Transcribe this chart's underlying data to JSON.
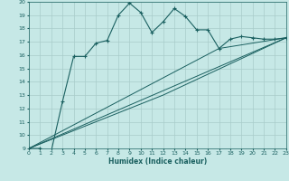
{
  "xlabel": "Humidex (Indice chaleur)",
  "ylabel": "",
  "xlim": [
    0,
    23
  ],
  "ylim": [
    9,
    20
  ],
  "yticks": [
    9,
    10,
    11,
    12,
    13,
    14,
    15,
    16,
    17,
    18,
    19,
    20
  ],
  "xticks": [
    0,
    1,
    2,
    3,
    4,
    5,
    6,
    7,
    8,
    9,
    10,
    11,
    12,
    13,
    14,
    15,
    16,
    17,
    18,
    19,
    20,
    21,
    22,
    23
  ],
  "bg_color": "#c6e8e6",
  "grid_color": "#a8ccca",
  "line_color": "#1a6060",
  "series": [
    [
      0,
      9
    ],
    [
      1,
      9
    ],
    [
      2,
      8.8
    ],
    [
      3,
      12.5
    ],
    [
      4,
      15.9
    ],
    [
      5,
      15.9
    ],
    [
      6,
      16.9
    ],
    [
      7,
      17.1
    ],
    [
      8,
      19.0
    ],
    [
      9,
      19.9
    ],
    [
      10,
      19.2
    ],
    [
      11,
      17.7
    ],
    [
      12,
      18.5
    ],
    [
      13,
      19.5
    ],
    [
      14,
      18.9
    ],
    [
      15,
      17.9
    ],
    [
      16,
      17.9
    ],
    [
      17,
      16.5
    ],
    [
      18,
      17.2
    ],
    [
      19,
      17.4
    ],
    [
      20,
      17.3
    ],
    [
      21,
      17.2
    ],
    [
      22,
      17.2
    ],
    [
      23,
      17.3
    ]
  ],
  "line2": [
    [
      0,
      9
    ],
    [
      23,
      17.3
    ]
  ],
  "line3": [
    [
      0,
      9
    ],
    [
      17,
      16.5
    ],
    [
      23,
      17.3
    ]
  ],
  "line4": [
    [
      0,
      9
    ],
    [
      12,
      13.0
    ],
    [
      23,
      17.3
    ]
  ]
}
